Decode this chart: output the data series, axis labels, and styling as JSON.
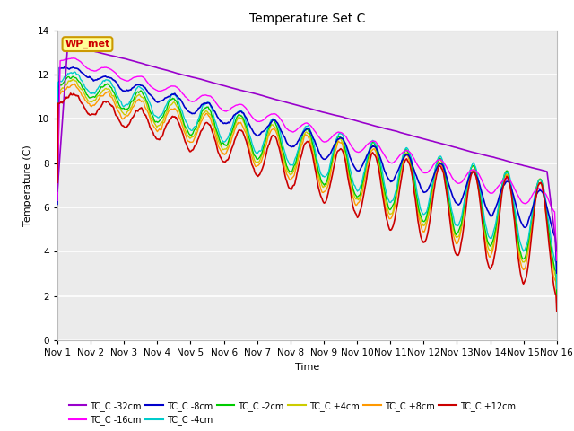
{
  "title": "Temperature Set C",
  "xlabel": "Time",
  "ylabel": "Temperature (C)",
  "ylim": [
    0,
    14
  ],
  "yticks": [
    0,
    2,
    4,
    6,
    8,
    10,
    12,
    14
  ],
  "x_labels": [
    "Nov 1",
    "Nov 2",
    "Nov 3",
    "Nov 4",
    "Nov 5",
    "Nov 6",
    "Nov 7",
    "Nov 8",
    "Nov 9",
    "Nov 10",
    "Nov 11",
    "Nov 12",
    "Nov 13",
    "Nov 14",
    "Nov 15",
    "Nov 16"
  ],
  "series_colors": {
    "TC_C -32cm": "#9900cc",
    "TC_C -16cm": "#ff00ff",
    "TC_C -8cm": "#0000cc",
    "TC_C -4cm": "#00cccc",
    "TC_C -2cm": "#00cc00",
    "TC_C +4cm": "#cccc00",
    "TC_C +8cm": "#ff9900",
    "TC_C +12cm": "#cc0000"
  },
  "wp_met_box": {
    "text": "WP_met",
    "facecolor": "#ffff99",
    "edgecolor": "#cc9900",
    "textcolor": "#cc0000"
  },
  "plot_bg": "#ebebeb",
  "fig_size": [
    6.4,
    4.8
  ],
  "dpi": 100
}
